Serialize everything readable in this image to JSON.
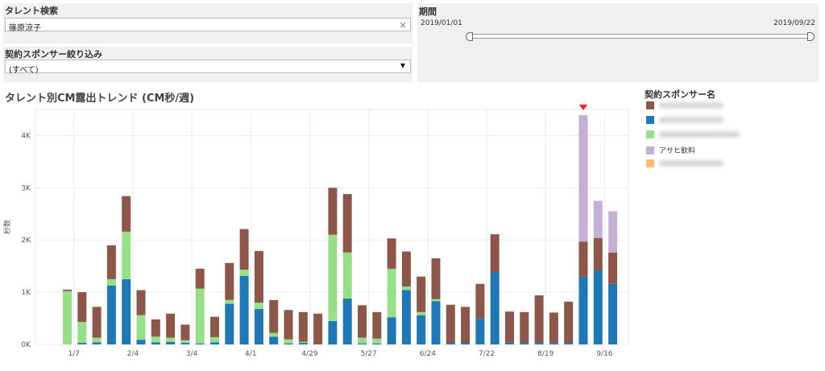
{
  "talent_search": {
    "label": "タレント検索",
    "value": "篠原涼子",
    "clear_glyph": "×"
  },
  "sponsor_filter": {
    "label": "契約スポンサー絞り込み",
    "value": "(すべて)",
    "arrow_glyph": "▼"
  },
  "period": {
    "label": "期間",
    "start": "2019/01/01",
    "end": "2019/09/22"
  },
  "colors": {
    "sponsor_brown": "#8c564b",
    "sponsor_blue": "#1f77b4",
    "sponsor_green": "#98df8a",
    "sponsor_purple": "#c5b0d5",
    "sponsor_orange": "#ffbb78",
    "arrow": "#e8262a"
  },
  "legend": {
    "title": "契約スポンサー名",
    "items": [
      {
        "color": "#8c564b",
        "label": ""
      },
      {
        "color": "#1f77b4",
        "label": ""
      },
      {
        "color": "#98df8a",
        "label": ""
      },
      {
        "color": "#c5b0d5",
        "label": "アサヒ飲料"
      },
      {
        "color": "#ffbb78",
        "label": ""
      }
    ]
  },
  "chart_data": {
    "type": "bar",
    "stacked": true,
    "title": "タレント別CM露出トレンド (CM秒/週)",
    "ylabel": "秒数",
    "ylim": [
      0,
      4500
    ],
    "yticks": [
      0,
      1000,
      2000,
      3000,
      4000
    ],
    "ytick_labels": [
      "0K",
      "1K",
      "2K",
      "3K",
      "4K"
    ],
    "xtick_labels": [
      "1/7",
      "2/4",
      "3/4",
      "4/1",
      "4/29",
      "5/27",
      "6/24",
      "7/22",
      "8/19",
      "9/16"
    ],
    "xtick_indices": [
      1,
      5,
      9,
      13,
      17,
      21,
      25,
      29,
      33,
      37
    ],
    "grid": true,
    "series": [
      {
        "color": "#1f77b4",
        "values": [
          0,
          30,
          40,
          1130,
          1250,
          90,
          40,
          50,
          30,
          20,
          40,
          780,
          1310,
          680,
          150,
          20,
          30,
          0,
          450,
          880,
          20,
          20,
          520,
          1040,
          560,
          830,
          30,
          30,
          490,
          1380,
          40,
          30,
          30,
          20,
          30,
          1300,
          1410,
          1160
        ]
      },
      {
        "color": "#98df8a",
        "values": [
          1020,
          400,
          90,
          120,
          910,
          470,
          110,
          80,
          50,
          1050,
          100,
          70,
          120,
          120,
          70,
          80,
          20,
          0,
          1650,
          880,
          110,
          90,
          930,
          70,
          60,
          40,
          0,
          0,
          0,
          0,
          0,
          0,
          0,
          0,
          0,
          0,
          0,
          0
        ]
      },
      {
        "color": "#8c564b",
        "values": [
          30,
          570,
          590,
          650,
          680,
          480,
          330,
          460,
          300,
          380,
          390,
          710,
          780,
          990,
          630,
          560,
          570,
          590,
          900,
          1120,
          620,
          510,
          580,
          670,
          680,
          780,
          730,
          690,
          670,
          730,
          590,
          590,
          910,
          590,
          790,
          670,
          630,
          600
        ]
      },
      {
        "color": "#c5b0d5",
        "values": [
          0,
          0,
          0,
          0,
          0,
          0,
          0,
          0,
          0,
          0,
          0,
          0,
          0,
          0,
          0,
          0,
          0,
          0,
          0,
          0,
          0,
          0,
          0,
          0,
          0,
          0,
          0,
          0,
          0,
          0,
          0,
          0,
          0,
          0,
          0,
          2420,
          710,
          790
        ]
      }
    ],
    "annotation": {
      "type": "arrow",
      "index": 35
    }
  }
}
